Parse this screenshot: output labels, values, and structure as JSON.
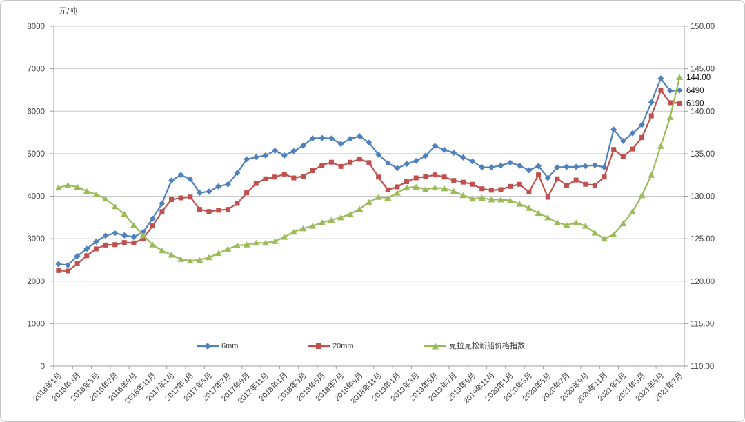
{
  "chart_data": {
    "type": "line",
    "title": "",
    "left_axis": {
      "title": "元/吨",
      "min": 0,
      "max": 8000,
      "step": 1000,
      "tick_labels": [
        "0",
        "1000",
        "2000",
        "3000",
        "4000",
        "5000",
        "6000",
        "7000",
        "8000"
      ]
    },
    "right_axis": {
      "min": 110,
      "max": 150,
      "step": 5,
      "tick_labels": [
        "110.00",
        "115.00",
        "120.00",
        "125.00",
        "130.00",
        "135.00",
        "140.00",
        "145.00",
        "150.00"
      ]
    },
    "x_label_every": 2,
    "grid": true,
    "legend_position": "bottom-inside",
    "categories": [
      "2016年1月",
      "2016年2月",
      "2016年3月",
      "2016年4月",
      "2016年5月",
      "2016年6月",
      "2016年7月",
      "2016年8月",
      "2016年9月",
      "2016年10月",
      "2016年11月",
      "2016年12月",
      "2017年1月",
      "2017年2月",
      "2017年3月",
      "2017年4月",
      "2017年5月",
      "2017年6月",
      "2017年7月",
      "2017年8月",
      "2017年9月",
      "2017年10月",
      "2017年11月",
      "2017年12月",
      "2018年1月",
      "2018年2月",
      "2018年3月",
      "2018年4月",
      "2018年5月",
      "2018年6月",
      "2018年7月",
      "2018年8月",
      "2018年9月",
      "2018年10月",
      "2018年11月",
      "2018年12月",
      "2019年1月",
      "2019年2月",
      "2019年3月",
      "2019年4月",
      "2019年5月",
      "2019年6月",
      "2019年7月",
      "2019年8月",
      "2019年9月",
      "2019年10月",
      "2019年11月",
      "2019年12月",
      "2020年1月",
      "2020年2月",
      "2020年3月",
      "2020年4月",
      "2020年5月",
      "2020年6月",
      "2020年7月",
      "2020年8月",
      "2020年9月",
      "2020年10月",
      "2020年11月",
      "2020年12月",
      "2021年1月",
      "2021年2月",
      "2021年3月",
      "2021年4月",
      "2021年5月",
      "2021年6月",
      "2021年7月"
    ],
    "series": [
      {
        "name": "6mm",
        "color": "#4f81bd",
        "marker": "diamond",
        "axis": "left",
        "values": [
          2400,
          2380,
          2590,
          2760,
          2930,
          3070,
          3130,
          3080,
          3040,
          3160,
          3470,
          3830,
          4370,
          4500,
          4400,
          4080,
          4110,
          4230,
          4280,
          4550,
          4870,
          4920,
          4960,
          5070,
          4960,
          5060,
          5190,
          5360,
          5370,
          5360,
          5230,
          5350,
          5410,
          5260,
          4980,
          4780,
          4660,
          4760,
          4830,
          4950,
          5180,
          5090,
          5020,
          4910,
          4820,
          4680,
          4680,
          4720,
          4790,
          4720,
          4610,
          4710,
          4430,
          4680,
          4690,
          4690,
          4710,
          4730,
          4680,
          5570,
          5300,
          5480,
          5680,
          6210,
          6770,
          6480,
          6490
        ]
      },
      {
        "name": "20mm",
        "color": "#c0504d",
        "marker": "square",
        "axis": "left",
        "values": [
          2250,
          2240,
          2410,
          2600,
          2760,
          2850,
          2860,
          2910,
          2900,
          3000,
          3300,
          3640,
          3920,
          3960,
          3980,
          3690,
          3640,
          3670,
          3690,
          3830,
          4080,
          4300,
          4410,
          4450,
          4520,
          4430,
          4470,
          4600,
          4730,
          4800,
          4700,
          4800,
          4870,
          4790,
          4450,
          4150,
          4220,
          4340,
          4430,
          4460,
          4500,
          4450,
          4370,
          4330,
          4280,
          4175,
          4140,
          4155,
          4230,
          4280,
          4100,
          4500,
          3975,
          4410,
          4260,
          4380,
          4280,
          4260,
          4450,
          5100,
          4930,
          5110,
          5380,
          5890,
          6490,
          6200,
          6190
        ]
      },
      {
        "name": "克拉克松新船价格指数",
        "color": "#9bbb59",
        "marker": "triangle",
        "axis": "right",
        "values": [
          131.0,
          131.3,
          131.1,
          130.6,
          130.2,
          129.7,
          128.8,
          127.9,
          126.6,
          125.4,
          124.3,
          123.6,
          123.1,
          122.6,
          122.4,
          122.5,
          122.8,
          123.3,
          123.8,
          124.2,
          124.3,
          124.5,
          124.5,
          124.7,
          125.2,
          125.8,
          126.2,
          126.5,
          126.9,
          127.2,
          127.5,
          127.9,
          128.5,
          129.3,
          129.9,
          129.8,
          130.4,
          131.0,
          131.1,
          130.8,
          131.0,
          130.9,
          130.6,
          130.1,
          129.7,
          129.8,
          129.6,
          129.6,
          129.5,
          129.1,
          128.6,
          128.0,
          127.5,
          126.9,
          126.6,
          126.9,
          126.5,
          125.7,
          125.0,
          125.5,
          126.8,
          128.2,
          130.1,
          132.5,
          135.9,
          139.3,
          144.0
        ]
      }
    ],
    "end_labels": [
      {
        "text": "144.00",
        "value": 144.0,
        "axis": "right"
      },
      {
        "text": "6490",
        "value": 6490,
        "axis": "left"
      },
      {
        "text": "6190",
        "value": 6190,
        "axis": "left"
      }
    ]
  }
}
